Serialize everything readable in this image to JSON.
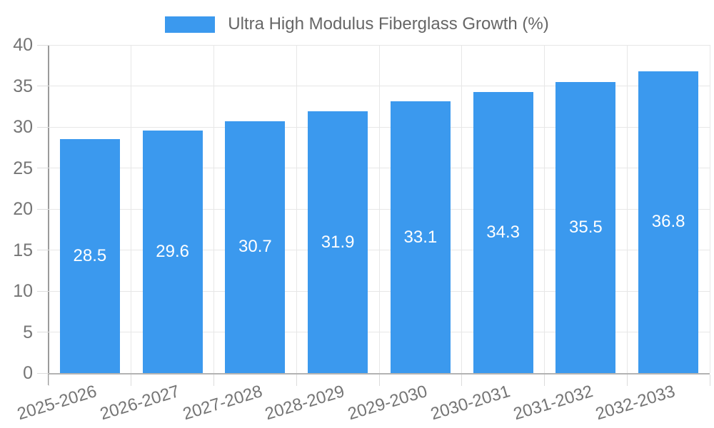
{
  "legend": {
    "label": "Ultra High Modulus Fiberglass Growth (%)"
  },
  "chart_data": {
    "type": "bar",
    "title": "",
    "xlabel": "",
    "ylabel": "",
    "legend_entries": [
      "Ultra High Modulus Fiberglass Growth (%)"
    ],
    "legend_position": "top-center",
    "categories": [
      "2025-2026",
      "2026-2027",
      "2027-2028",
      "2028-2029",
      "2029-2030",
      "2030-2031",
      "2031-2032",
      "2032-2033"
    ],
    "values": [
      28.5,
      29.6,
      30.7,
      31.9,
      33.1,
      34.3,
      35.5,
      36.8
    ],
    "data_labels": [
      "28.5",
      "29.6",
      "30.7",
      "31.9",
      "33.1",
      "34.3",
      "35.5",
      "36.8"
    ],
    "ylim": [
      0,
      40
    ],
    "yticks": [
      0,
      5,
      10,
      15,
      20,
      25,
      30,
      35,
      40
    ],
    "grid": true,
    "colors": {
      "bar": "#3b99ee",
      "data_label": "#ffffff",
      "tick_label": "#757575",
      "legend_text": "#666666",
      "gridline": "#e7e7e7",
      "y_axis_line": "#9b9b9b",
      "x_axis_line": "#b3b3b3",
      "tick_mark": "#dcdcdc",
      "background": "#ffffff"
    }
  }
}
